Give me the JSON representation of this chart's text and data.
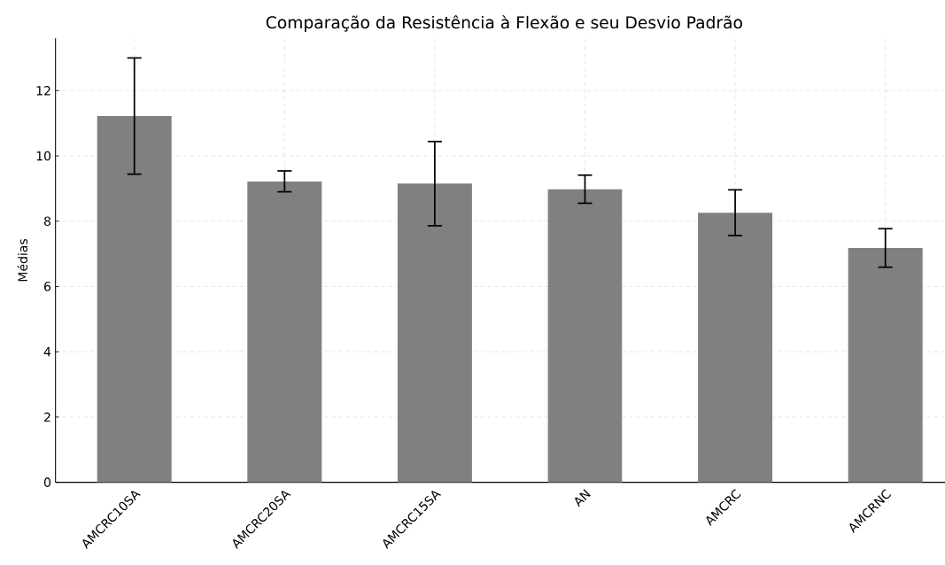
{
  "chart_data": {
    "type": "bar",
    "title": "Comparação da Resistência à Flexão e seu Desvio Padrão",
    "ylabel": "Médias",
    "categories": [
      "AMCRC10SA",
      "AMCRC20SA",
      "AMCRC15SA",
      "AN",
      "AMCRC",
      "AMCRNC"
    ],
    "values": [
      11.22,
      9.22,
      9.15,
      8.98,
      8.26,
      7.18
    ],
    "errors": [
      1.78,
      0.32,
      1.29,
      0.43,
      0.7,
      0.59
    ],
    "color": "#808080",
    "ylim": [
      0,
      13.6
    ],
    "yticks": [
      0,
      2,
      4,
      6,
      8,
      10,
      12
    ],
    "grid": true
  }
}
